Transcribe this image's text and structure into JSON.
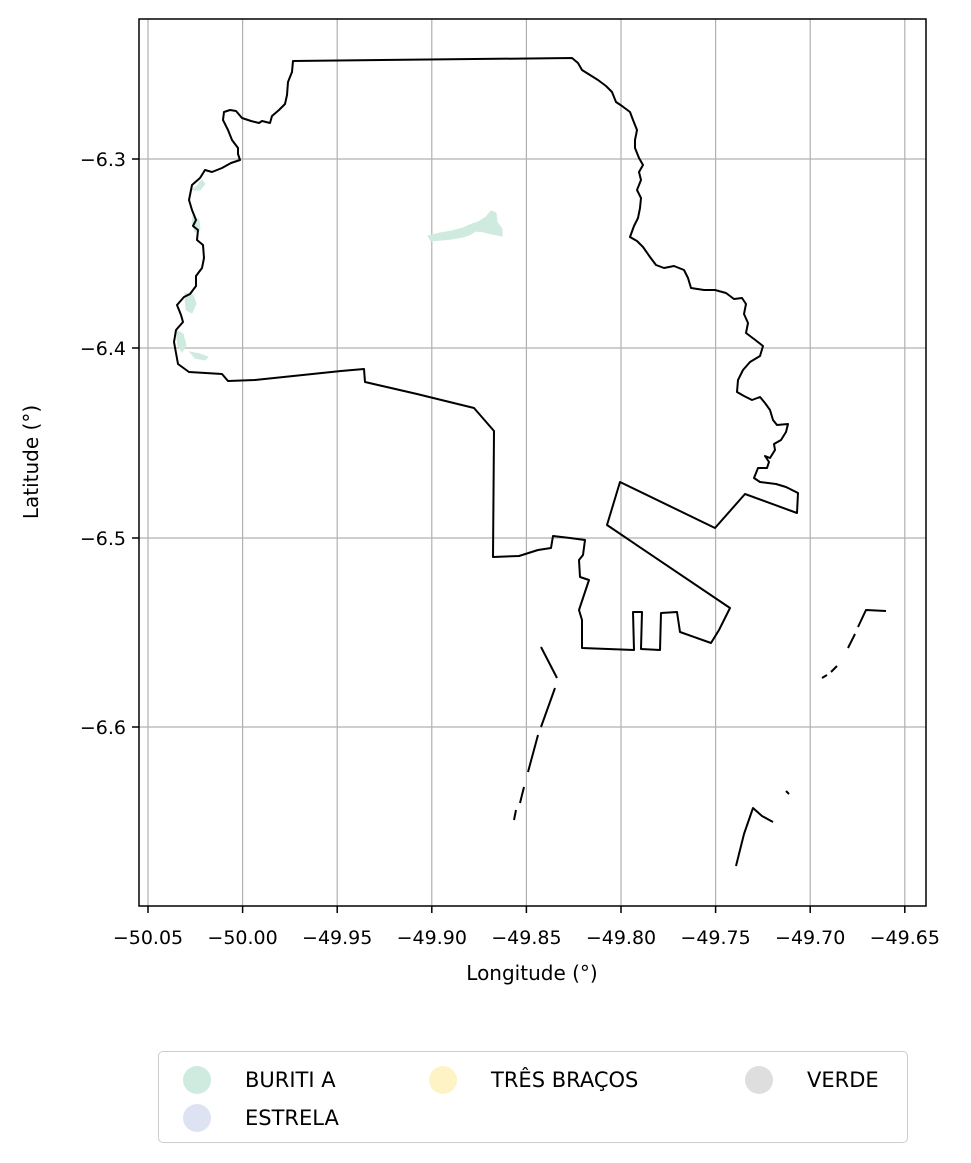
{
  "map": {
    "xlabel": "Longitude (°)",
    "ylabel": "Latitude (°)",
    "x_ticks": [
      "−50.05",
      "−50.00",
      "−49.95",
      "−49.90",
      "−49.85",
      "−49.80",
      "−49.75",
      "−49.70",
      "−49.65"
    ],
    "y_ticks": [
      "−6.3",
      "−6.4",
      "−6.5",
      "−6.6"
    ],
    "grid": true,
    "boundary_color": "#000000"
  },
  "legend": {
    "placement": "bottom-center",
    "items": [
      {
        "label": "BURITI A",
        "color": "#cfeade"
      },
      {
        "label": "ESTRELA",
        "color": "#dde3f2"
      },
      {
        "label": "TRÊS BRAÇOS",
        "color": "#fdf3c4"
      },
      {
        "label": "VERDE",
        "color": "#dedede"
      }
    ]
  }
}
